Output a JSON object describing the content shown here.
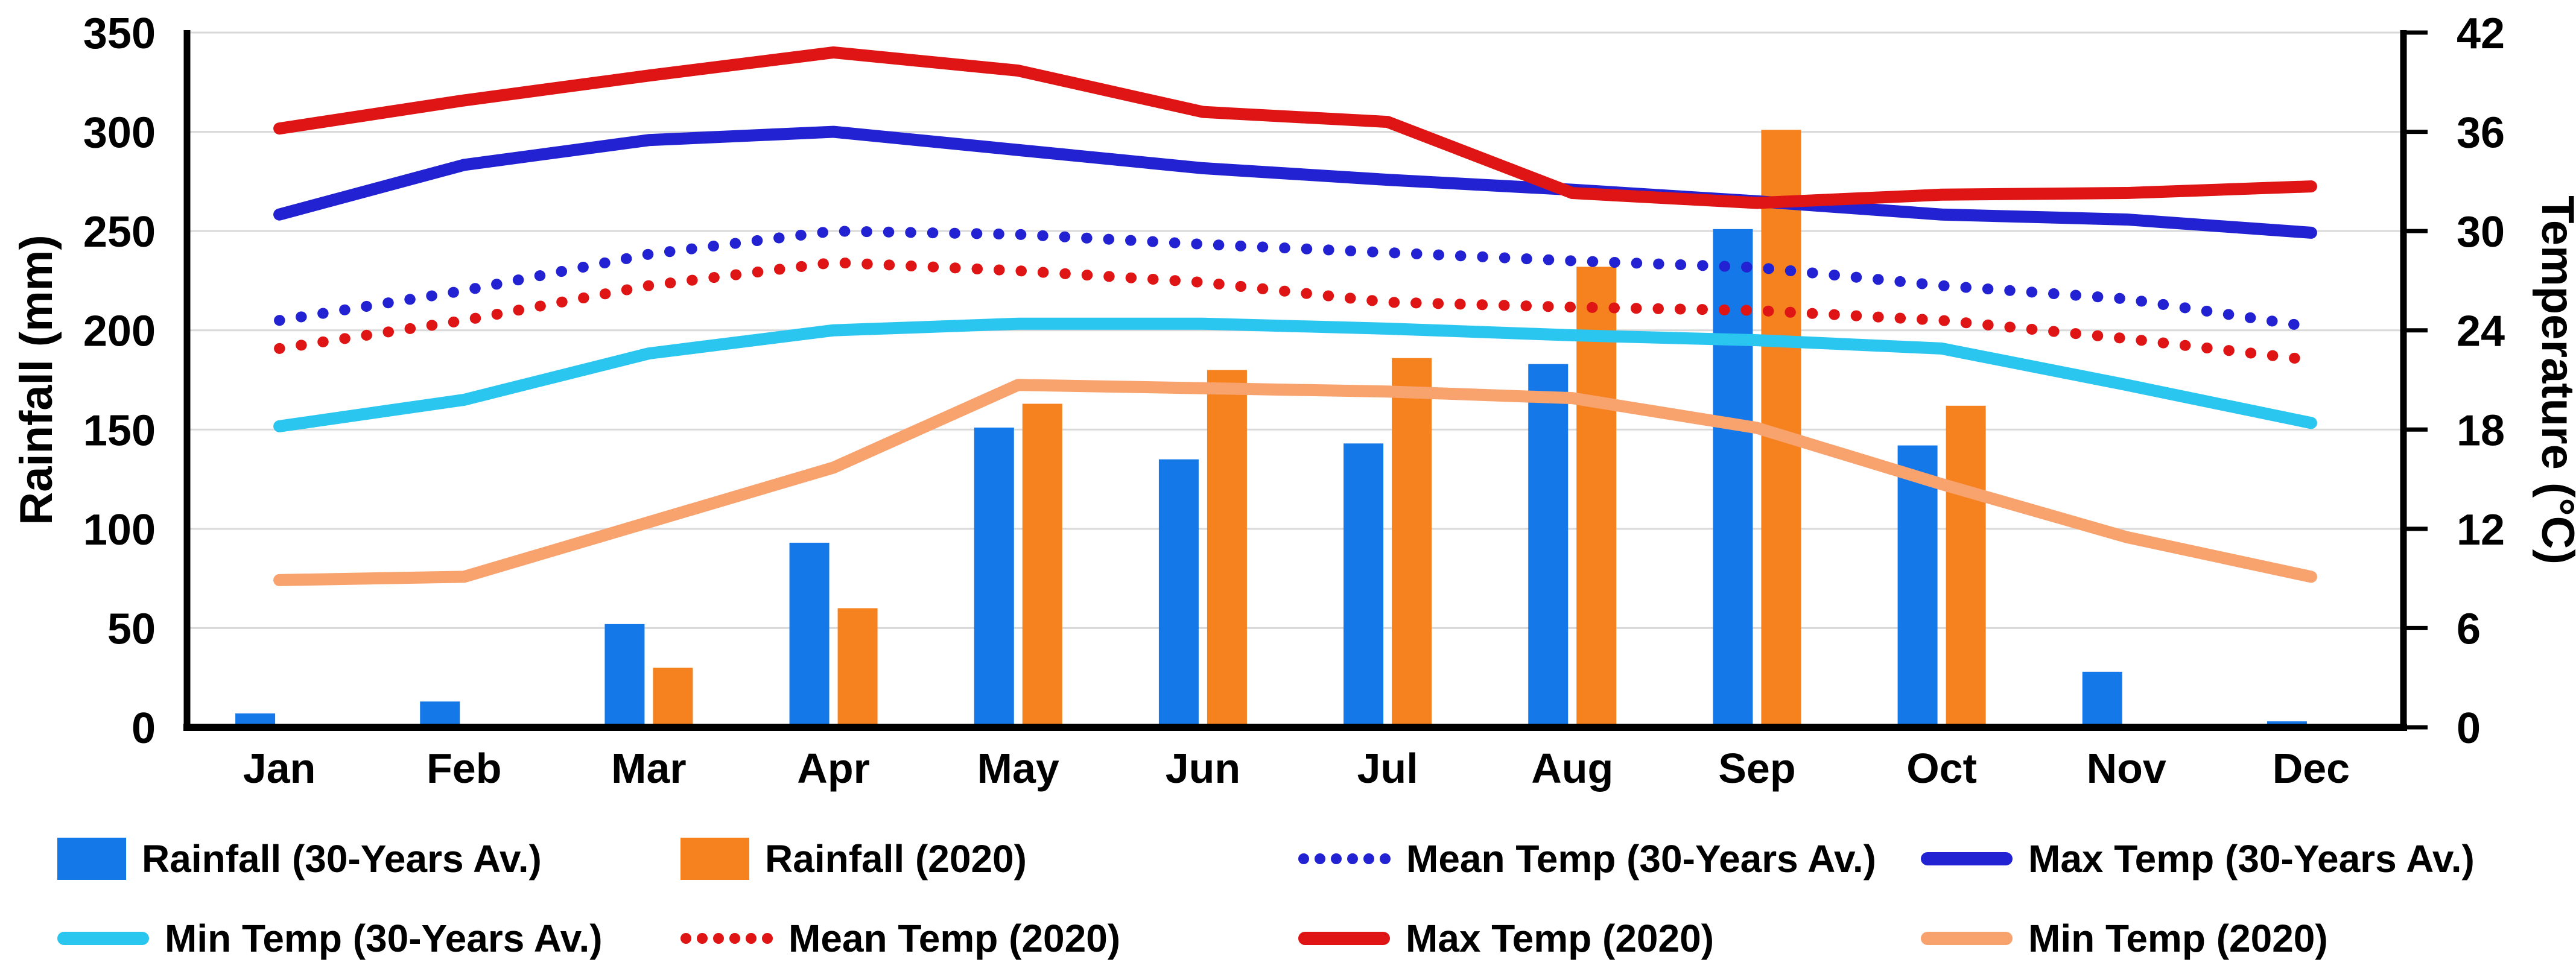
{
  "chart_data": {
    "type": "bar-line-combo",
    "categories": [
      "Jan",
      "Feb",
      "Mar",
      "Apr",
      "May",
      "Jun",
      "Jul",
      "Aug",
      "Sep",
      "Oct",
      "Nov",
      "Dec"
    ],
    "left_axis": {
      "title": "Rainfall (mm)",
      "min": 0,
      "max": 350,
      "step": 50,
      "ticks": [
        0,
        50,
        100,
        150,
        200,
        250,
        300,
        350
      ]
    },
    "right_axis": {
      "title": "Temperature (°C)",
      "min": 0,
      "max": 42,
      "step": 6,
      "ticks": [
        0,
        6,
        12,
        18,
        24,
        30,
        36,
        42
      ]
    },
    "grid": "horizontal",
    "bar_series": [
      {
        "name": "Rainfall (30-Years Av.)",
        "color": "#1478E8",
        "axis": "left",
        "values": [
          7,
          13,
          52,
          93,
          151,
          135,
          143,
          183,
          251,
          142,
          28,
          3
        ]
      },
      {
        "name": "Rainfall (2020)",
        "color": "#F5821F",
        "axis": "left",
        "values": [
          0,
          0,
          30,
          60,
          163,
          180,
          186,
          232,
          301,
          162,
          0,
          0
        ]
      }
    ],
    "line_series": [
      {
        "name": "Min Temp (2020)",
        "color": "#F8A26E",
        "style": "solid",
        "axis": "right",
        "values": [
          8.9,
          9.1,
          12.4,
          15.7,
          20.7,
          20.5,
          20.3,
          19.9,
          18.1,
          14.7,
          11.5,
          9.1
        ]
      },
      {
        "name": "Min Temp (30-Years Av.)",
        "color": "#2AC6F0",
        "style": "solid",
        "axis": "right",
        "values": [
          18.2,
          19.8,
          22.6,
          24.0,
          24.4,
          24.4,
          24.1,
          23.7,
          23.4,
          22.9,
          20.7,
          18.4
        ]
      },
      {
        "name": "Mean Temp (2020)",
        "color": "#DF1414",
        "style": "dotted",
        "axis": "right",
        "values": [
          22.9,
          24.6,
          26.7,
          28.1,
          27.6,
          26.9,
          25.7,
          25.4,
          25.2,
          24.6,
          23.5,
          22.2
        ]
      },
      {
        "name": "Mean Temp (30-Years Av.)",
        "color": "#2222D2",
        "style": "dotted",
        "axis": "right",
        "values": [
          24.6,
          26.4,
          28.6,
          30.0,
          29.8,
          29.2,
          28.7,
          28.2,
          27.8,
          26.7,
          25.9,
          24.2
        ]
      },
      {
        "name": "Max Temp (30-Years Av.)",
        "color": "#2222D2",
        "style": "solid",
        "axis": "right",
        "values": [
          31.0,
          34.0,
          35.5,
          36.0,
          34.9,
          33.8,
          33.1,
          32.5,
          31.8,
          31.0,
          30.7,
          29.9
        ]
      },
      {
        "name": "Max Temp (2020)",
        "color": "#DF1414",
        "style": "solid",
        "axis": "right",
        "values": [
          36.2,
          37.9,
          39.4,
          40.8,
          39.7,
          37.2,
          36.6,
          32.3,
          31.7,
          32.2,
          32.3,
          32.7
        ]
      }
    ],
    "legend": {
      "rows": [
        {
          "items": [
            {
              "label": "Rainfall (30-Years Av.)",
              "swatch": "rect",
              "color": "#1478E8"
            },
            {
              "label": "Rainfall (2020)",
              "swatch": "rect",
              "color": "#F5821F"
            },
            {
              "label": "Mean Temp (30-Years Av.)",
              "swatch": "dots",
              "color": "#2222D2"
            },
            {
              "label": "Max Temp (30-Years Av.)",
              "swatch": "line",
              "color": "#2222D2"
            }
          ]
        },
        {
          "items": [
            {
              "label": "Min Temp (30-Years Av.)",
              "swatch": "line",
              "color": "#2AC6F0"
            },
            {
              "label": "Mean Temp (2020)",
              "swatch": "dots",
              "color": "#DF1414"
            },
            {
              "label": "Max Temp (2020)",
              "swatch": "line",
              "color": "#DF1414"
            },
            {
              "label": "Min Temp (2020)",
              "swatch": "line",
              "color": "#F8A26E"
            }
          ]
        }
      ]
    },
    "colors": {
      "gridline": "#D9D9D9",
      "axis": "#000000",
      "text": "#000000"
    }
  }
}
